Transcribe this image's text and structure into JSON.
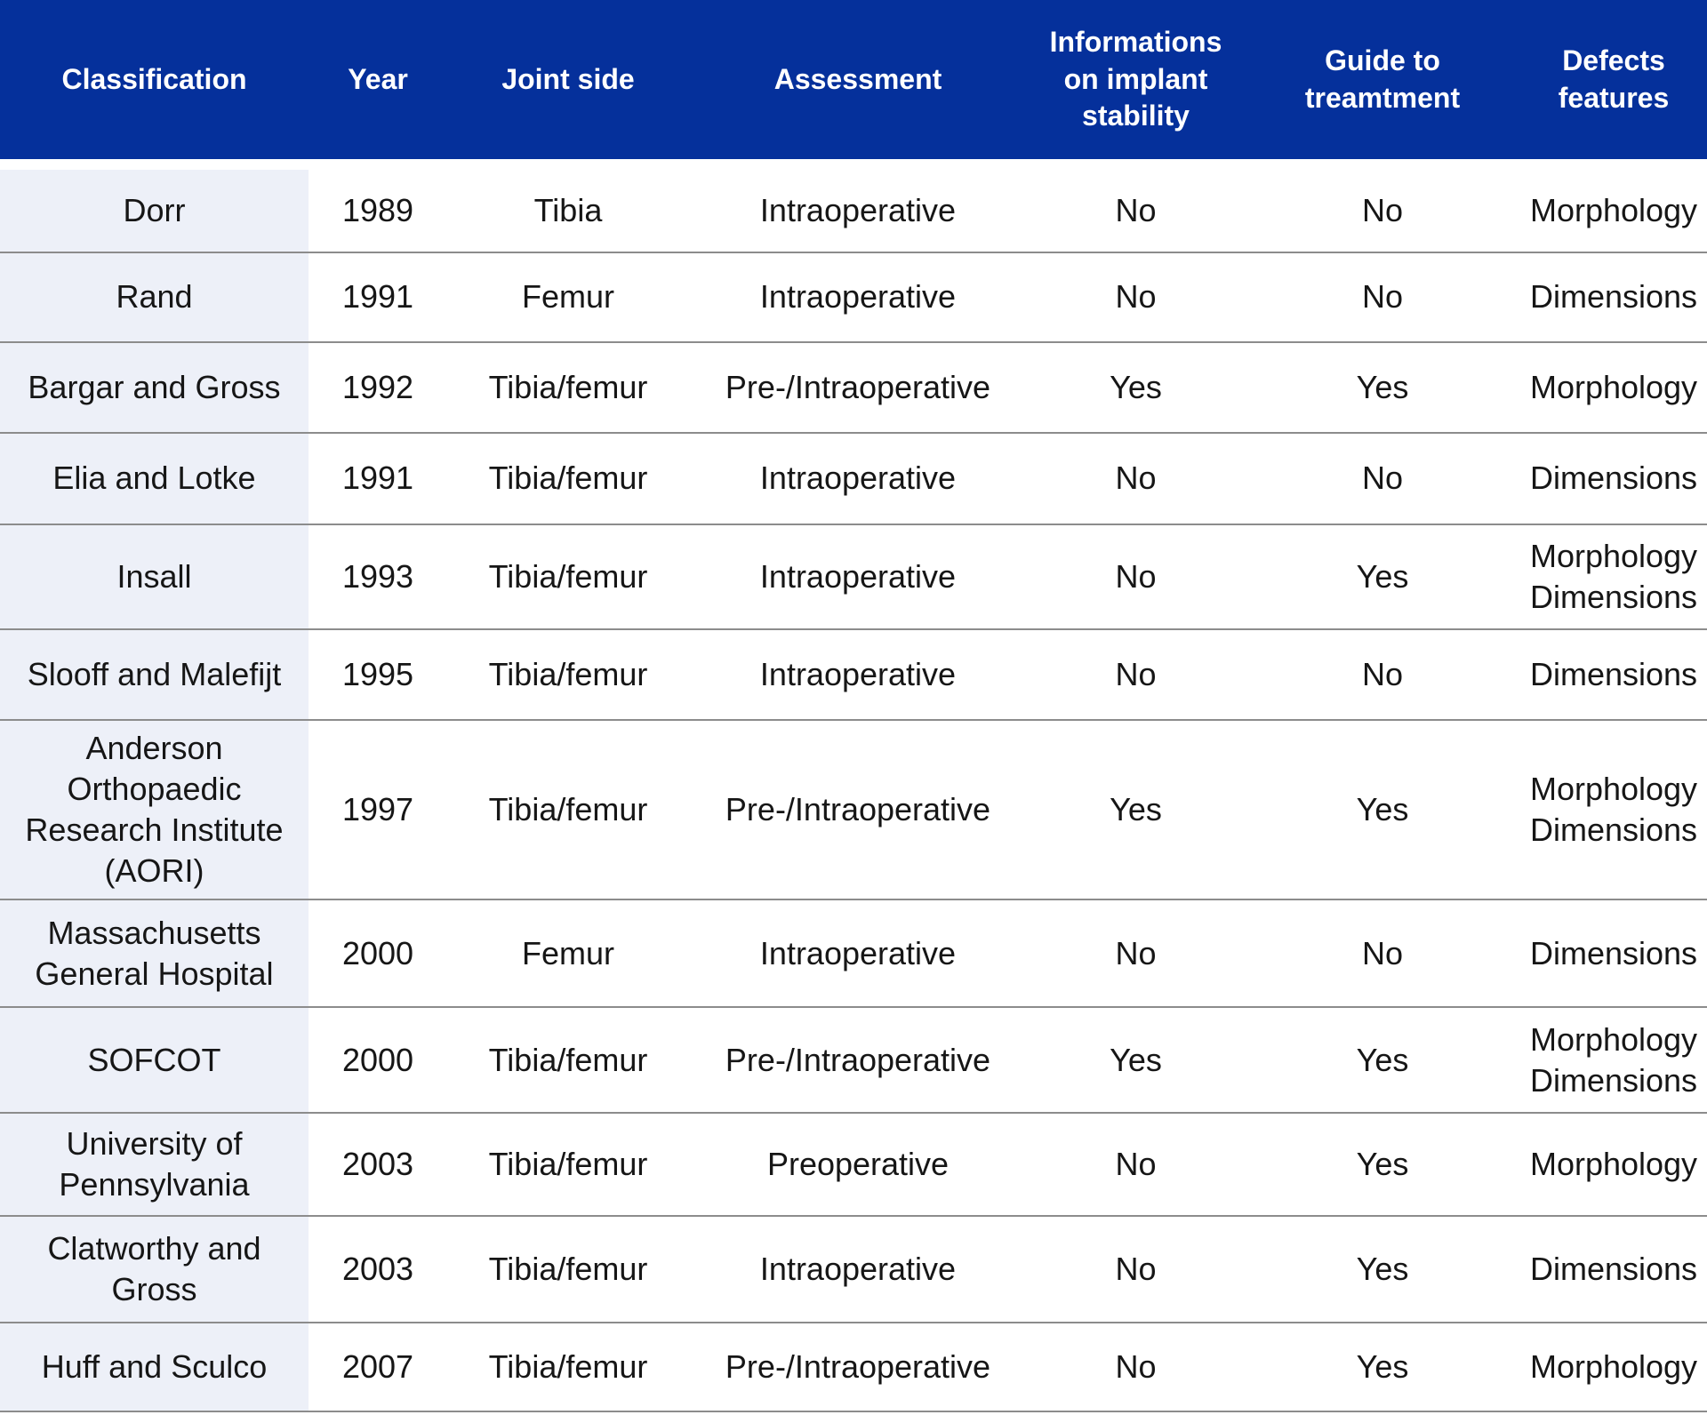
{
  "colors": {
    "header_bg": "#05309B",
    "header_text": "#FFFFFF",
    "label_column_bg": "#EDF0F8",
    "row_bg": "#FFFFFF",
    "separator": "#8C8C8C",
    "body_text": "#161616"
  },
  "table": {
    "column_ids": [
      "classification",
      "year",
      "joint-side",
      "assessment",
      "implant-stability",
      "guide-to-treatment",
      "defects-features"
    ],
    "header": [
      "Classification",
      "Year",
      "Joint side",
      "Assessment",
      "Informations\non implant\nstability",
      "Guide to\ntreamtment",
      "Defects\nfeatures"
    ],
    "rows": [
      [
        "Dorr",
        "1989",
        "Tibia",
        "Intraoperative",
        "No",
        "No",
        "Morphology"
      ],
      [
        "Rand",
        "1991",
        "Femur",
        "Intraoperative",
        "No",
        "No",
        "Dimensions"
      ],
      [
        "Bargar and Gross",
        "1992",
        "Tibia/femur",
        "Pre-/Intraoperative",
        "Yes",
        "Yes",
        "Morphology"
      ],
      [
        "Elia and Lotke",
        "1991",
        "Tibia/femur",
        "Intraoperative",
        "No",
        "No",
        "Dimensions"
      ],
      [
        "Insall",
        "1993",
        "Tibia/femur",
        "Intraoperative",
        "No",
        "Yes",
        "Morphology\nDimensions"
      ],
      [
        "Slooff and Malefijt",
        "1995",
        "Tibia/femur",
        "Intraoperative",
        "No",
        "No",
        "Dimensions"
      ],
      [
        "Anderson\nOrthopaedic\nResearch Institute\n(AORI)",
        "1997",
        "Tibia/femur",
        "Pre-/Intraoperative",
        "Yes",
        "Yes",
        "Morphology\nDimensions"
      ],
      [
        "Massachusetts\nGeneral Hospital",
        "2000",
        "Femur",
        "Intraoperative",
        "No",
        "No",
        "Dimensions"
      ],
      [
        "SOFCOT",
        "2000",
        "Tibia/femur",
        "Pre-/Intraoperative",
        "Yes",
        "Yes",
        "Morphology\nDimensions"
      ],
      [
        "University of\nPennsylvania",
        "2003",
        "Tibia/femur",
        "Preoperative",
        "No",
        "Yes",
        "Morphology"
      ],
      [
        "Clatworthy and\nGross",
        "2003",
        "Tibia/femur",
        "Intraoperative",
        "No",
        "Yes",
        "Dimensions"
      ],
      [
        "Huff and Sculco",
        "2007",
        "Tibia/femur",
        "Pre-/Intraoperative",
        "No",
        "Yes",
        "Morphology"
      ]
    ]
  },
  "chart_data": {
    "type": "table",
    "columns": [
      "Classification",
      "Year",
      "Joint side",
      "Assessment",
      "Informations on implant stability",
      "Guide to treamtment",
      "Defects features"
    ],
    "rows": [
      [
        "Dorr",
        1989,
        "Tibia",
        "Intraoperative",
        "No",
        "No",
        "Morphology"
      ],
      [
        "Rand",
        1991,
        "Femur",
        "Intraoperative",
        "No",
        "No",
        "Dimensions"
      ],
      [
        "Bargar and Gross",
        1992,
        "Tibia/femur",
        "Pre-/Intraoperative",
        "Yes",
        "Yes",
        "Morphology"
      ],
      [
        "Elia and Lotke",
        1991,
        "Tibia/femur",
        "Intraoperative",
        "No",
        "No",
        "Dimensions"
      ],
      [
        "Insall",
        1993,
        "Tibia/femur",
        "Intraoperative",
        "No",
        "Yes",
        "Morphology, Dimensions"
      ],
      [
        "Slooff and Malefijt",
        1995,
        "Tibia/femur",
        "Intraoperative",
        "No",
        "No",
        "Dimensions"
      ],
      [
        "Anderson Orthopaedic Research Institute (AORI)",
        1997,
        "Tibia/femur",
        "Pre-/Intraoperative",
        "Yes",
        "Yes",
        "Morphology, Dimensions"
      ],
      [
        "Massachusetts General Hospital",
        2000,
        "Femur",
        "Intraoperative",
        "No",
        "No",
        "Dimensions"
      ],
      [
        "SOFCOT",
        2000,
        "Tibia/femur",
        "Pre-/Intraoperative",
        "Yes",
        "Yes",
        "Morphology, Dimensions"
      ],
      [
        "University of Pennsylvania",
        2003,
        "Tibia/femur",
        "Preoperative",
        "No",
        "Yes",
        "Morphology"
      ],
      [
        "Clatworthy and Gross",
        2003,
        "Tibia/femur",
        "Intraoperative",
        "No",
        "Yes",
        "Dimensions"
      ],
      [
        "Huff and Sculco",
        2007,
        "Tibia/femur",
        "Pre-/Intraoperative",
        "No",
        "Yes",
        "Morphology"
      ]
    ],
    "layout": {
      "header_position": "top",
      "gridlines": "horizontal",
      "legend": "none"
    }
  }
}
